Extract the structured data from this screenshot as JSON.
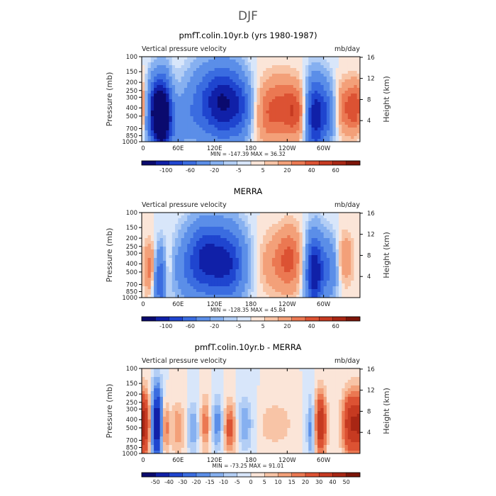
{
  "page_title": "DJF",
  "chart_data": [
    {
      "type": "heatmap",
      "title": "pmfT.colin.10yr.b (yrs 1980-1987)",
      "left_label": "Vertical pressure velocity",
      "units": "mb/day",
      "ylabel": "Pressure (mb)",
      "y2label": "Height (km)",
      "xticks": [
        "0",
        "60E",
        "120E",
        "180",
        "120W",
        "60W"
      ],
      "yticks": [
        "100",
        "150",
        "200",
        "250",
        "300",
        "400",
        "500",
        "700",
        "850",
        "1000"
      ],
      "y2ticks": [
        "4",
        "8",
        "12",
        "16"
      ],
      "stats": "MIN = -147.39   MAX =  36.32",
      "colorbar_labels": [
        "-100",
        "-60",
        "-20",
        "-5",
        "5",
        "20",
        "40",
        "60"
      ],
      "levels": [
        -120,
        -100,
        -80,
        -60,
        -40,
        -20,
        -10,
        -5,
        0,
        5,
        10,
        20,
        30,
        40,
        50,
        60,
        70
      ],
      "ylim": [
        1000,
        100
      ],
      "features": [
        {
          "lon": 22,
          "p": 450,
          "value": -90,
          "width_deg": 12,
          "depth": 0.6
        },
        {
          "lon": 35,
          "p": 500,
          "value": -110,
          "width_deg": 10,
          "depth": 0.7
        },
        {
          "lon": 0,
          "p": 400,
          "value": 30,
          "width_deg": 10,
          "depth": 0.5
        },
        {
          "lon": 60,
          "p": 600,
          "value": -25,
          "width_deg": 18,
          "depth": 0.5
        },
        {
          "lon": 110,
          "p": 350,
          "value": -60,
          "width_deg": 25,
          "depth": 0.7
        },
        {
          "lon": 140,
          "p": 350,
          "value": -70,
          "width_deg": 18,
          "depth": 0.7
        },
        {
          "lon": 165,
          "p": 400,
          "value": -40,
          "width_deg": 12,
          "depth": 0.6
        },
        {
          "lon": 205,
          "p": 500,
          "value": 15,
          "width_deg": 15,
          "depth": 0.6
        },
        {
          "lon": 230,
          "p": 400,
          "value": 30,
          "width_deg": 20,
          "depth": 0.6
        },
        {
          "lon": 255,
          "p": 450,
          "value": 25,
          "width_deg": 12,
          "depth": 0.5
        },
        {
          "lon": 285,
          "p": 500,
          "value": -90,
          "width_deg": 10,
          "depth": 0.7
        },
        {
          "lon": 305,
          "p": 450,
          "value": -50,
          "width_deg": 10,
          "depth": 0.6
        },
        {
          "lon": 340,
          "p": 400,
          "value": 30,
          "width_deg": 15,
          "depth": 0.5
        }
      ]
    },
    {
      "type": "heatmap",
      "title": "MERRA",
      "left_label": "Vertical pressure velocity",
      "units": "mb/day",
      "ylabel": "Pressure (mb)",
      "y2label": "Height (km)",
      "xticks": [
        "0",
        "60E",
        "120E",
        "180",
        "120W",
        "60W"
      ],
      "yticks": [
        "100",
        "150",
        "200",
        "250",
        "300",
        "400",
        "500",
        "700",
        "850",
        "1000"
      ],
      "y2ticks": [
        "4",
        "8",
        "12",
        "16"
      ],
      "stats": "MIN = -128.35   MAX =  45.84",
      "colorbar_labels": [
        "-100",
        "-60",
        "-20",
        "-5",
        "5",
        "20",
        "40",
        "60"
      ],
      "levels": [
        -120,
        -100,
        -80,
        -60,
        -40,
        -20,
        -10,
        -5,
        0,
        5,
        10,
        20,
        30,
        40,
        50,
        60,
        70
      ],
      "ylim": [
        1000,
        100
      ],
      "features": [
        {
          "lon": 15,
          "p": 450,
          "value": 30,
          "width_deg": 8,
          "depth": 0.5
        },
        {
          "lon": 30,
          "p": 600,
          "value": -60,
          "width_deg": 8,
          "depth": 0.6
        },
        {
          "lon": 42,
          "p": 500,
          "value": 20,
          "width_deg": 6,
          "depth": 0.5
        },
        {
          "lon": 70,
          "p": 500,
          "value": -20,
          "width_deg": 20,
          "depth": 0.6
        },
        {
          "lon": 105,
          "p": 350,
          "value": -80,
          "width_deg": 22,
          "depth": 0.7
        },
        {
          "lon": 145,
          "p": 400,
          "value": -70,
          "width_deg": 20,
          "depth": 0.7
        },
        {
          "lon": 215,
          "p": 400,
          "value": 15,
          "width_deg": 20,
          "depth": 0.6
        },
        {
          "lon": 245,
          "p": 350,
          "value": 30,
          "width_deg": 15,
          "depth": 0.6
        },
        {
          "lon": 285,
          "p": 500,
          "value": -100,
          "width_deg": 10,
          "depth": 0.7
        },
        {
          "lon": 310,
          "p": 450,
          "value": -40,
          "width_deg": 10,
          "depth": 0.6
        },
        {
          "lon": 335,
          "p": 350,
          "value": 20,
          "width_deg": 10,
          "depth": 0.5
        }
      ]
    },
    {
      "type": "heatmap",
      "title": "pmfT.colin.10yr.b - MERRA",
      "left_label": "Vertical pressure velocity",
      "units": "mb/day",
      "ylabel": "Pressure (mb)",
      "y2label": "Height (km)",
      "xticks": [
        "0",
        "60E",
        "120E",
        "180",
        "120W",
        "60W"
      ],
      "yticks": [
        "100",
        "150",
        "200",
        "250",
        "300",
        "400",
        "500",
        "700",
        "850",
        "1000"
      ],
      "y2ticks": [
        "4",
        "8",
        "12",
        "16"
      ],
      "stats": "MIN = -73.25   MAX =  91.01",
      "colorbar_labels": [
        "-50",
        "-40",
        "-30",
        "-20",
        "-15",
        "-10",
        "-5",
        "0",
        "5",
        "10",
        "15",
        "20",
        "30",
        "40",
        "50"
      ],
      "levels": [
        -60,
        -50,
        -40,
        -30,
        -20,
        -15,
        -10,
        -5,
        0,
        5,
        10,
        15,
        20,
        30,
        40,
        50,
        60
      ],
      "ylim": [
        1000,
        100
      ],
      "features": [
        {
          "lon": 5,
          "p": 450,
          "value": 40,
          "width_deg": 8,
          "depth": 0.6
        },
        {
          "lon": 25,
          "p": 450,
          "value": -55,
          "width_deg": 7,
          "depth": 0.7
        },
        {
          "lon": 38,
          "p": 500,
          "value": 25,
          "width_deg": 5,
          "depth": 0.5
        },
        {
          "lon": 60,
          "p": 500,
          "value": 15,
          "width_deg": 8,
          "depth": 0.5
        },
        {
          "lon": 85,
          "p": 500,
          "value": -15,
          "width_deg": 8,
          "depth": 0.5
        },
        {
          "lon": 105,
          "p": 450,
          "value": 20,
          "width_deg": 7,
          "depth": 0.5
        },
        {
          "lon": 125,
          "p": 450,
          "value": -20,
          "width_deg": 8,
          "depth": 0.5
        },
        {
          "lon": 145,
          "p": 500,
          "value": 25,
          "width_deg": 8,
          "depth": 0.5
        },
        {
          "lon": 170,
          "p": 450,
          "value": -15,
          "width_deg": 10,
          "depth": 0.5
        },
        {
          "lon": 220,
          "p": 450,
          "value": 10,
          "width_deg": 20,
          "depth": 0.4
        },
        {
          "lon": 280,
          "p": 500,
          "value": -20,
          "width_deg": 5,
          "depth": 0.6
        },
        {
          "lon": 295,
          "p": 450,
          "value": 40,
          "width_deg": 7,
          "depth": 0.6
        },
        {
          "lon": 345,
          "p": 450,
          "value": 40,
          "width_deg": 10,
          "depth": 0.6
        }
      ]
    }
  ],
  "colormap": [
    "#0a0a6e",
    "#1020a8",
    "#1f45cf",
    "#3a6ce0",
    "#5b8ee8",
    "#86b0f0",
    "#b3cef5",
    "#d8e6fa",
    "#fbe5d8",
    "#f8c4a6",
    "#f3a079",
    "#eb7852",
    "#dc5233",
    "#c63a21",
    "#a82614",
    "#7d1509"
  ]
}
